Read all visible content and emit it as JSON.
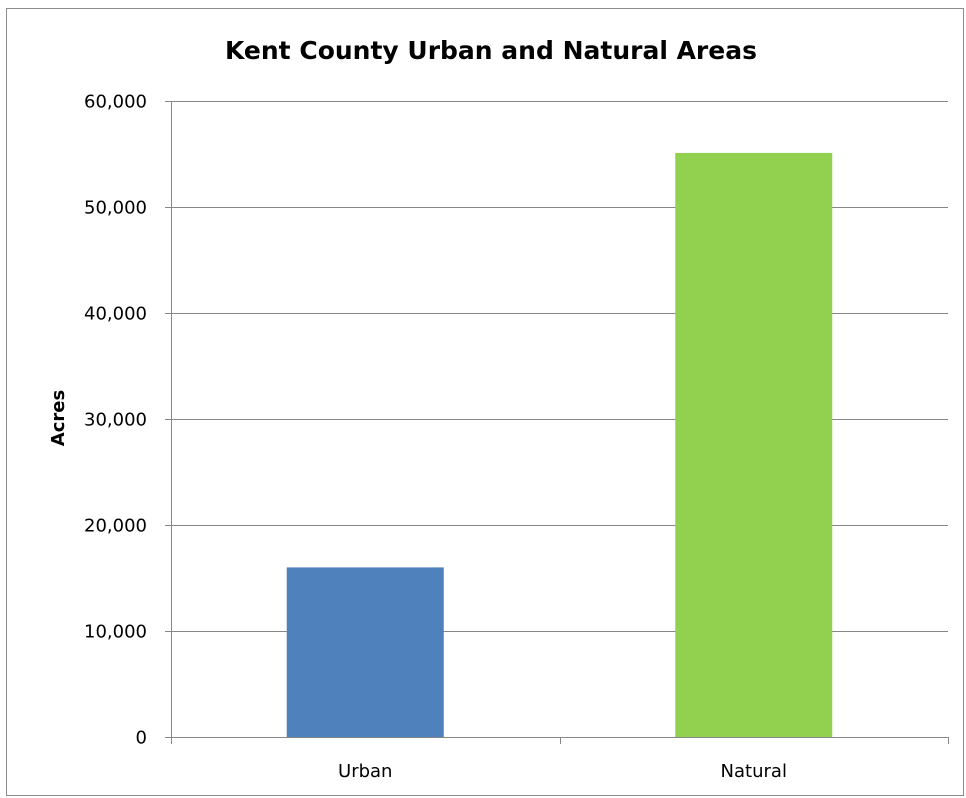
{
  "chart_data": {
    "type": "bar",
    "title": "Kent County Urban and Natural Areas",
    "xlabel": "",
    "ylabel": "Acres",
    "categories": [
      "Urban",
      "Natural"
    ],
    "values": [
      16000,
      55100
    ],
    "colors": [
      "#4f81bd",
      "#92d050"
    ],
    "ylim": [
      0,
      60000
    ],
    "yticks": [
      0,
      10000,
      20000,
      30000,
      40000,
      50000,
      60000
    ],
    "ytick_labels": [
      "0",
      "10,000",
      "20,000",
      "30,000",
      "40,000",
      "50,000",
      "60,000"
    ],
    "grid": true,
    "legend": "none"
  }
}
